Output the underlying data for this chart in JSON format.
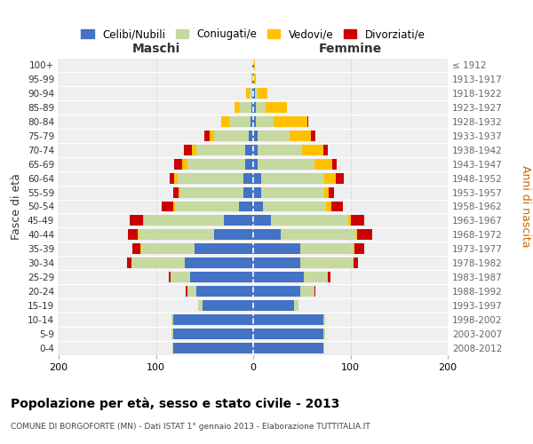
{
  "age_groups": [
    "100+",
    "95-99",
    "90-94",
    "85-89",
    "80-84",
    "75-79",
    "70-74",
    "65-69",
    "60-64",
    "55-59",
    "50-54",
    "45-49",
    "40-44",
    "35-39",
    "30-34",
    "25-29",
    "20-24",
    "15-19",
    "10-14",
    "5-9",
    "0-4"
  ],
  "birth_years": [
    "≤ 1912",
    "1913-1917",
    "1918-1922",
    "1923-1927",
    "1928-1932",
    "1933-1937",
    "1938-1942",
    "1943-1947",
    "1948-1952",
    "1953-1957",
    "1958-1962",
    "1963-1967",
    "1968-1972",
    "1973-1977",
    "1978-1982",
    "1983-1987",
    "1988-1992",
    "1993-1997",
    "1998-2002",
    "2003-2007",
    "2008-2012"
  ],
  "colors": {
    "celibi": "#4472c4",
    "coniugati": "#c5d9a0",
    "vedovi": "#ffc000",
    "divorziati": "#cc0000"
  },
  "maschi": {
    "celibi": [
      1,
      1,
      1,
      2,
      3,
      5,
      8,
      8,
      10,
      10,
      15,
      30,
      40,
      60,
      70,
      65,
      58,
      52,
      82,
      82,
      82
    ],
    "coniugati": [
      0,
      0,
      3,
      12,
      22,
      35,
      50,
      60,
      68,
      65,
      65,
      82,
      78,
      55,
      55,
      20,
      10,
      5,
      2,
      2,
      1
    ],
    "vedovi": [
      0,
      1,
      3,
      5,
      8,
      5,
      5,
      5,
      3,
      2,
      2,
      1,
      1,
      1,
      0,
      0,
      0,
      0,
      0,
      0,
      0
    ],
    "divorziati": [
      0,
      0,
      0,
      0,
      0,
      5,
      8,
      8,
      5,
      5,
      12,
      14,
      10,
      8,
      5,
      2,
      1,
      0,
      0,
      0,
      0
    ]
  },
  "femmine": {
    "nubili": [
      1,
      1,
      2,
      3,
      3,
      5,
      5,
      5,
      8,
      8,
      10,
      18,
      28,
      48,
      48,
      52,
      48,
      42,
      72,
      72,
      72
    ],
    "coniugate": [
      0,
      0,
      3,
      10,
      18,
      32,
      45,
      58,
      65,
      65,
      65,
      80,
      78,
      55,
      55,
      25,
      15,
      5,
      2,
      2,
      1
    ],
    "vedove": [
      1,
      2,
      10,
      22,
      35,
      22,
      22,
      18,
      12,
      5,
      5,
      2,
      1,
      1,
      0,
      0,
      0,
      0,
      0,
      0,
      0
    ],
    "divorziate": [
      0,
      0,
      0,
      0,
      1,
      5,
      5,
      5,
      8,
      5,
      12,
      14,
      15,
      10,
      5,
      2,
      1,
      0,
      0,
      0,
      0
    ]
  },
  "title": "Popolazione per età, sesso e stato civile - 2013",
  "subtitle": "COMUNE DI BORGOFORTE (MN) - Dati ISTAT 1° gennaio 2013 - Elaborazione TUTTITALIA.IT",
  "label_maschi": "Maschi",
  "label_femmine": "Femmine",
  "ylabel_left": "Fasce di età",
  "ylabel_right": "Anni di nascita",
  "xlim": 200,
  "legend_labels": [
    "Celibi/Nubili",
    "Coniugati/e",
    "Vedovi/e",
    "Divorziati/e"
  ],
  "bg_color": "#ffffff",
  "plot_bg_color": "#efefef",
  "grid_color": "#cccccc"
}
